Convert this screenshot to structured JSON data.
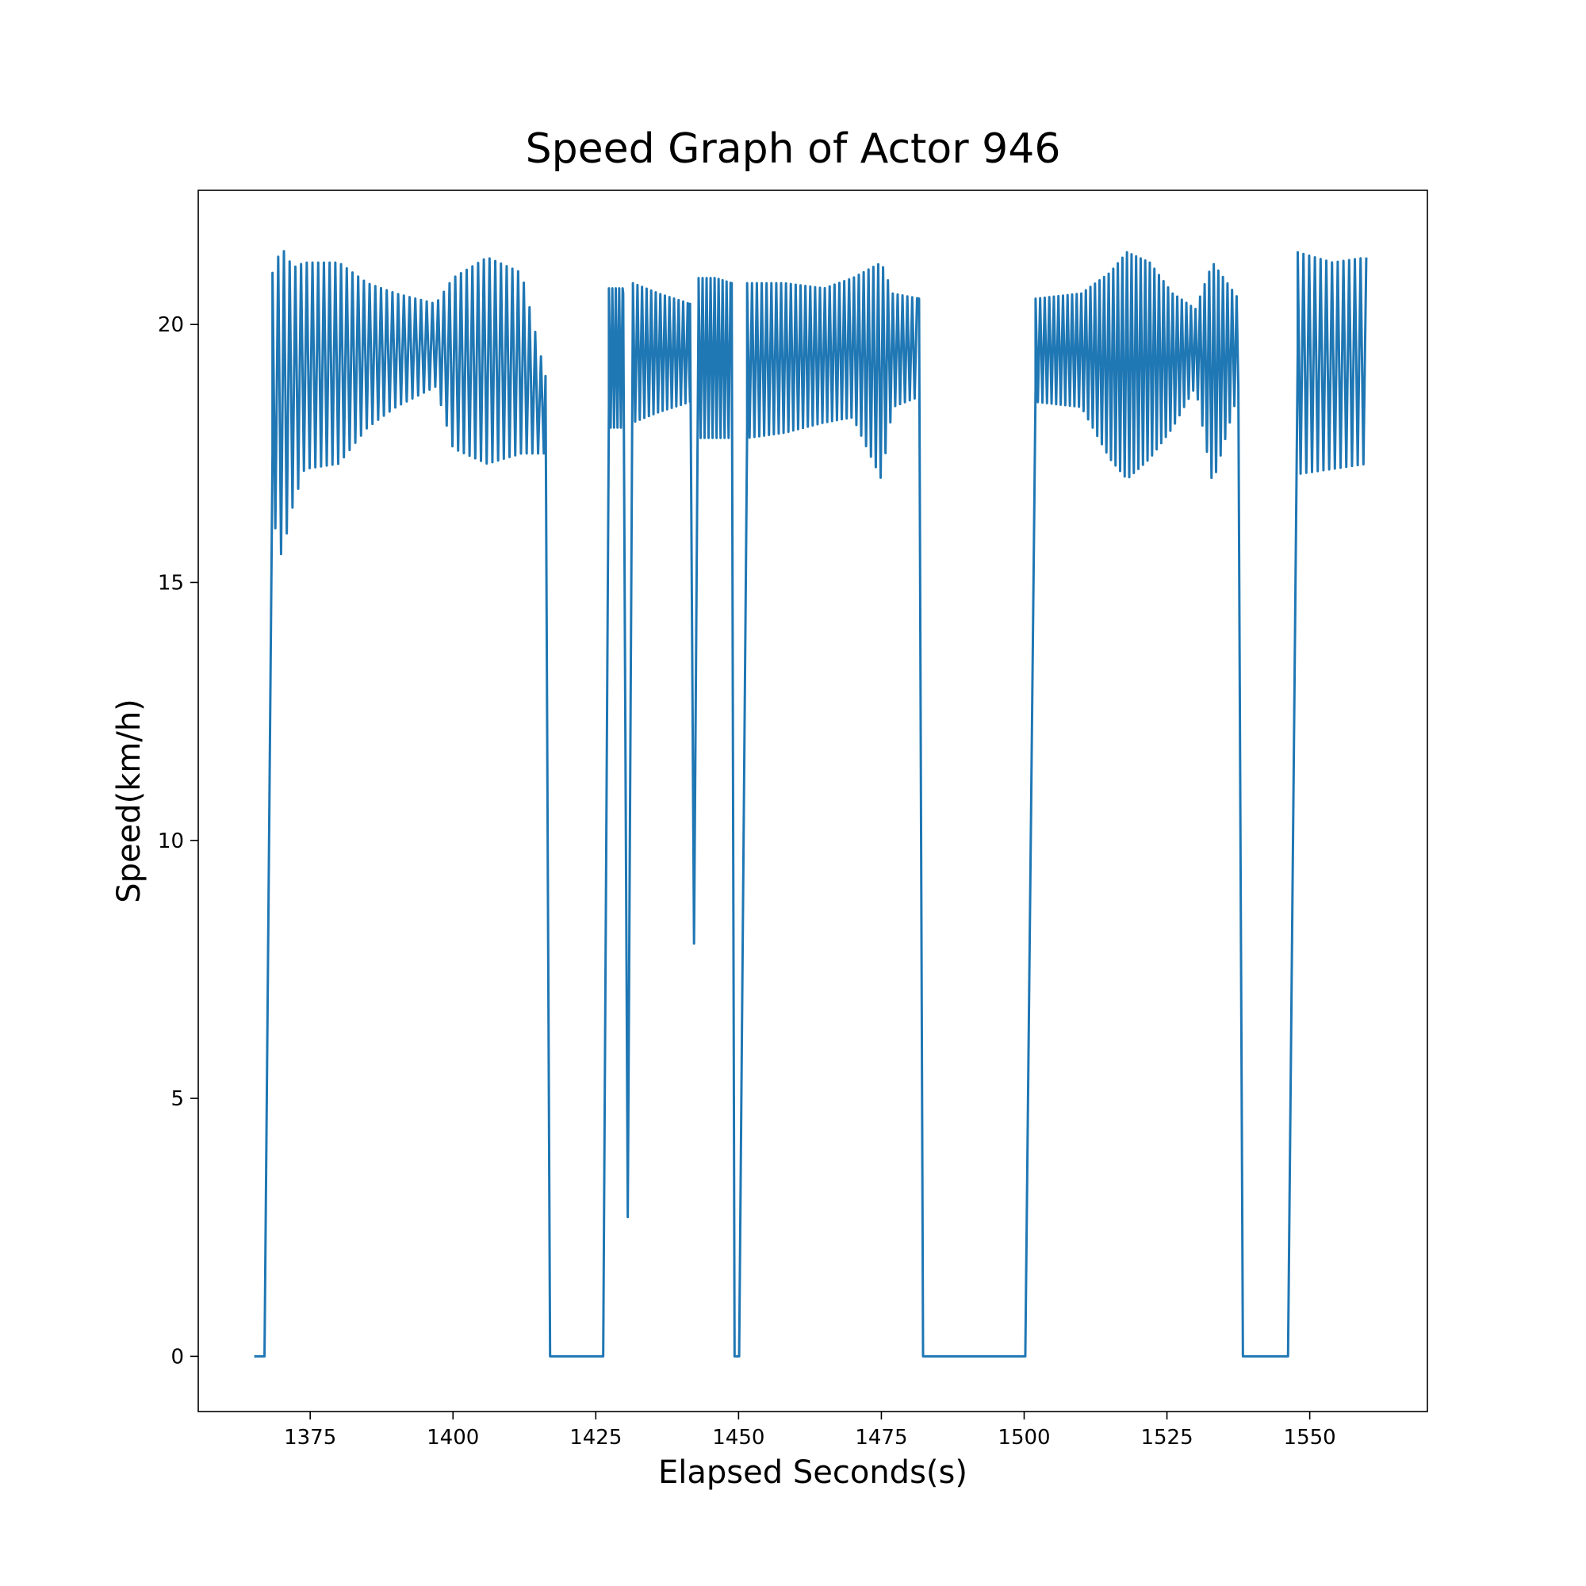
{
  "chart_data": {
    "type": "line",
    "title": "Speed Graph of Actor 946",
    "xlabel": "Elapsed Seconds(s)",
    "ylabel": "Speed(km/h)",
    "xlim": [
      1355.4,
      1570.6
    ],
    "ylim": [
      -1.07,
      22.6
    ],
    "xticks": [
      1375,
      1400,
      1425,
      1450,
      1475,
      1500,
      1525,
      1550
    ],
    "yticks": [
      0,
      5,
      10,
      15,
      20
    ],
    "grid": false,
    "legend": "none",
    "line_color": "#1f77b4",
    "series": [
      {
        "segments": [
          {
            "type": "flat",
            "x0": 1365.2,
            "x1": 1367.0,
            "y": 0
          },
          {
            "type": "ramp",
            "x0": 1367.0,
            "x1": 1368.4,
            "y0": 0,
            "y1": 17.5
          },
          {
            "type": "osc",
            "x0": 1368.4,
            "x1": 1416.2,
            "period": 1.0,
            "anchors": [
              [
                1368.4,
                21.0,
                16.3
              ],
              [
                1370.0,
                21.5,
                15.5
              ],
              [
                1372.0,
                21.1,
                16.5
              ],
              [
                1374.0,
                21.2,
                17.2
              ],
              [
                1380.0,
                21.2,
                17.3
              ],
              [
                1385.0,
                20.8,
                18.0
              ],
              [
                1390.0,
                20.6,
                18.4
              ],
              [
                1397.0,
                20.4,
                18.8
              ],
              [
                1400.0,
                20.9,
                17.6
              ],
              [
                1406.0,
                21.3,
                17.3
              ],
              [
                1412.0,
                21.0,
                17.5
              ],
              [
                1416.2,
                19.0,
                17.5
              ]
            ]
          },
          {
            "type": "ramp",
            "x0": 1416.2,
            "x1": 1417.0,
            "y0": 19.0,
            "y1": 0
          },
          {
            "type": "flat",
            "x0": 1417.0,
            "x1": 1426.3,
            "y": 0
          },
          {
            "type": "ramp",
            "x0": 1426.3,
            "x1": 1427.3,
            "y0": 0,
            "y1": 18.5
          },
          {
            "type": "osc",
            "x0": 1427.3,
            "x1": 1429.8,
            "period": 0.6,
            "anchors": [
              [
                1427.3,
                20.7,
                18.0
              ],
              [
                1429.8,
                20.7,
                18.0
              ]
            ]
          },
          {
            "type": "path",
            "points": [
              [
                1429.8,
                20.6
              ],
              [
                1430.6,
                2.7
              ],
              [
                1431.5,
                20.6
              ]
            ]
          },
          {
            "type": "osc",
            "x0": 1431.5,
            "x1": 1441.5,
            "period": 0.8,
            "anchors": [
              [
                1431.5,
                20.8,
                18.1
              ],
              [
                1436.0,
                20.6,
                18.3
              ],
              [
                1441.5,
                20.4,
                18.5
              ]
            ]
          },
          {
            "type": "path",
            "points": [
              [
                1441.5,
                20.4
              ],
              [
                1442.2,
                8.0
              ],
              [
                1443.0,
                20.5
              ]
            ]
          },
          {
            "type": "osc",
            "x0": 1443.0,
            "x1": 1448.8,
            "period": 0.7,
            "anchors": [
              [
                1443.0,
                20.9,
                17.8
              ],
              [
                1446.0,
                20.9,
                17.8
              ],
              [
                1448.8,
                20.8,
                17.8
              ]
            ]
          },
          {
            "type": "ramp",
            "x0": 1448.8,
            "x1": 1449.3,
            "y0": 20.8,
            "y1": 0
          },
          {
            "type": "flat",
            "x0": 1449.3,
            "x1": 1450.1,
            "y": 0
          },
          {
            "type": "ramp",
            "x0": 1450.1,
            "x1": 1451.5,
            "y0": 0,
            "y1": 18.0
          },
          {
            "type": "osc",
            "x0": 1451.5,
            "x1": 1481.6,
            "period": 0.85,
            "anchors": [
              [
                1451.5,
                20.8,
                17.8
              ],
              [
                1458.0,
                20.8,
                17.9
              ],
              [
                1465.0,
                20.7,
                18.1
              ],
              [
                1470.0,
                20.9,
                18.2
              ],
              [
                1475.0,
                21.2,
                17.0
              ],
              [
                1477.0,
                20.6,
                18.4
              ],
              [
                1481.6,
                20.5,
                18.6
              ]
            ]
          },
          {
            "type": "ramp",
            "x0": 1481.6,
            "x1": 1482.3,
            "y0": 20.5,
            "y1": 0
          },
          {
            "type": "flat",
            "x0": 1482.3,
            "x1": 1500.2,
            "y": 0
          },
          {
            "type": "ramp",
            "x0": 1500.2,
            "x1": 1502.0,
            "y0": 0,
            "y1": 18.8
          },
          {
            "type": "osc",
            "x0": 1502.0,
            "x1": 1537.5,
            "period": 0.8,
            "anchors": [
              [
                1502.0,
                20.5,
                18.5
              ],
              [
                1510.0,
                20.6,
                18.4
              ],
              [
                1515.0,
                21.0,
                17.4
              ],
              [
                1518.0,
                21.4,
                17.0
              ],
              [
                1522.0,
                21.2,
                17.4
              ],
              [
                1526.0,
                20.6,
                18.0
              ],
              [
                1530.0,
                20.3,
                18.8
              ],
              [
                1533.0,
                21.2,
                16.9
              ],
              [
                1537.5,
                20.5,
                18.7
              ]
            ]
          },
          {
            "type": "ramp",
            "x0": 1537.5,
            "x1": 1538.3,
            "y0": 18.8,
            "y1": 0
          },
          {
            "type": "flat",
            "x0": 1538.3,
            "x1": 1546.2,
            "y": 0
          },
          {
            "type": "ramp",
            "x0": 1546.2,
            "x1": 1547.9,
            "y0": 0,
            "y1": 19.5
          },
          {
            "type": "osc",
            "x0": 1547.9,
            "x1": 1560.0,
            "period": 1.0,
            "anchors": [
              [
                1547.9,
                21.4,
                17.1
              ],
              [
                1554.0,
                21.2,
                17.2
              ],
              [
                1560.0,
                21.3,
                17.3
              ]
            ]
          }
        ]
      }
    ]
  }
}
